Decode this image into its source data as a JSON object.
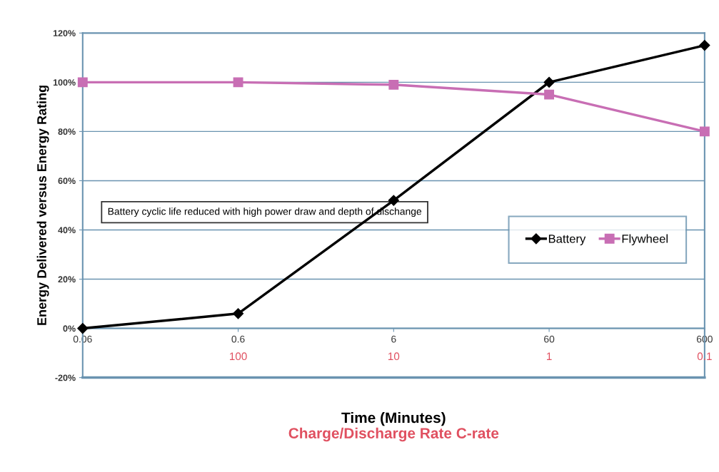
{
  "chart_data": {
    "type": "line",
    "xlabel": "Time (Minutes)",
    "ylabel": "Energy Delivered versus Energy Rating",
    "x2label": "Charge/Discharge Rate C-rate",
    "categories": [
      "0.06",
      "0.6",
      "6",
      "60",
      "600"
    ],
    "ylim": [
      -20,
      120
    ],
    "yticks": [
      {
        "value": -20,
        "label": "-20%"
      },
      {
        "value": 0,
        "label": "0%"
      },
      {
        "value": 20,
        "label": "20%"
      },
      {
        "value": 40,
        "label": "40%"
      },
      {
        "value": 60,
        "label": "60%"
      },
      {
        "value": 80,
        "label": "80%"
      },
      {
        "value": 100,
        "label": "100%"
      },
      {
        "value": 120,
        "label": "120%"
      }
    ],
    "series": [
      {
        "name": "Battery",
        "color": "#000000",
        "marker": "diamond",
        "values": [
          0,
          6,
          52,
          100,
          115
        ]
      },
      {
        "name": "Flywheel",
        "color": "#c86eb4",
        "marker": "square",
        "values": [
          100,
          100,
          99,
          95,
          80
        ]
      }
    ],
    "annotations": [
      "Battery cyclic life reduced with high power draw and depth of dischange",
      "100",
      "10",
      "1",
      "0.1"
    ],
    "grid": "y",
    "legend": "right"
  }
}
